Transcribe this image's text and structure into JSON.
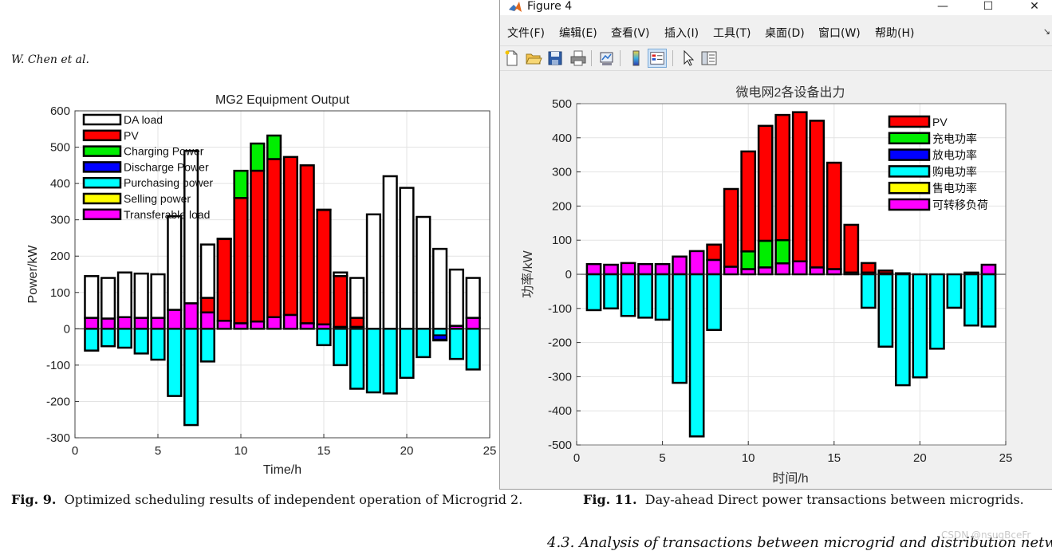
{
  "paper": {
    "authors": "W. Chen et al.",
    "fig9_label": "Fig. 9.",
    "fig9_caption": "Optimized scheduling results of independent operation of Microgrid 2.",
    "fig11_label": "Fig. 11.",
    "fig11_caption": "Day-ahead Direct power transactions between microgrids.",
    "section_heading": "4.3.  Analysis of transactions between microgrid and distribution network",
    "watermark": "CSDN @nsugBceFr"
  },
  "window": {
    "title": "Figure 4",
    "controls": {
      "minimize": "—",
      "maximize": "☐",
      "close": "✕"
    },
    "menu": [
      "文件(F)",
      "编辑(E)",
      "查看(V)",
      "插入(I)",
      "工具(T)",
      "桌面(D)",
      "窗口(W)",
      "帮助(H)"
    ],
    "menu_grip": "↘",
    "toolbar_icons": [
      "new-figure-icon",
      "open-file-icon",
      "save-icon",
      "print-icon",
      "link-plot-icon",
      "colorbar-icon",
      "legend-icon",
      "pointer-icon",
      "property-inspector-icon"
    ]
  },
  "colors": {
    "DA load": "#ffffff",
    "PV": "#ff0000",
    "Charging": "#00ee00",
    "Discharge": "#0000ff",
    "Purchasing": "#00ffff",
    "Selling": "#ffff00",
    "Transferable": "#ff00ff"
  },
  "chart_data": [
    {
      "type": "bar",
      "title": "MG2 Equipment Output",
      "xlabel": "Time/h",
      "ylabel": "Power/kW",
      "xlim": [
        0,
        25
      ],
      "ylim": [
        -300,
        600
      ],
      "xticks": [
        0,
        5,
        10,
        15,
        20,
        25
      ],
      "yticks": [
        -300,
        -200,
        -100,
        0,
        100,
        200,
        300,
        400,
        500,
        600
      ],
      "grid": true,
      "legend_position": "top-left",
      "legend": [
        "DA load",
        "PV",
        "Charging Power",
        "Discharge Power",
        "Purchasing power",
        "Selling power",
        "Transferable load"
      ],
      "series_order": [
        "Transferable",
        "PV",
        "Charging",
        "DA load"
      ],
      "x": [
        1,
        2,
        3,
        4,
        5,
        6,
        7,
        8,
        9,
        10,
        11,
        12,
        13,
        14,
        15,
        16,
        17,
        18,
        19,
        20,
        21,
        22,
        23,
        24
      ],
      "series": [
        {
          "name": "Transferable",
          "values": [
            30,
            28,
            32,
            30,
            30,
            52,
            70,
            45,
            22,
            15,
            20,
            32,
            38,
            15,
            12,
            5,
            5,
            0,
            0,
            0,
            0,
            0,
            8,
            30
          ]
        },
        {
          "name": "PV",
          "values": [
            0,
            0,
            0,
            0,
            0,
            0,
            0,
            40,
            225,
            345,
            415,
            435,
            435,
            435,
            315,
            140,
            25,
            0,
            0,
            0,
            0,
            0,
            0,
            0
          ]
        },
        {
          "name": "Charging",
          "values": [
            0,
            0,
            0,
            0,
            0,
            0,
            0,
            0,
            0,
            75,
            75,
            65,
            0,
            0,
            0,
            0,
            0,
            0,
            0,
            0,
            0,
            0,
            0,
            0
          ]
        },
        {
          "name": "DA load",
          "values": [
            145,
            140,
            155,
            152,
            150,
            310,
            490,
            232,
            248,
            358,
            433,
            467,
            472,
            450,
            328,
            155,
            140,
            315,
            420,
            388,
            308,
            220,
            163,
            140
          ]
        },
        {
          "name": "Purchasing",
          "values": [
            -60,
            -48,
            -52,
            -68,
            -85,
            -185,
            -265,
            -90,
            0,
            0,
            0,
            0,
            0,
            0,
            -45,
            -100,
            -165,
            -175,
            -178,
            -135,
            -78,
            -32,
            -83,
            -112
          ]
        },
        {
          "name": "Discharge",
          "values": [
            0,
            0,
            0,
            0,
            0,
            0,
            0,
            0,
            0,
            0,
            0,
            0,
            0,
            0,
            0,
            0,
            0,
            0,
            0,
            0,
            0,
            -12,
            0,
            0
          ]
        }
      ]
    },
    {
      "type": "bar",
      "title": "微电网2各设备出力",
      "xlabel": "时间/h",
      "ylabel": "功率/kW",
      "xlim": [
        0,
        25
      ],
      "ylim": [
        -500,
        500
      ],
      "xticks": [
        0,
        5,
        10,
        15,
        20,
        25
      ],
      "yticks": [
        -500,
        -400,
        -300,
        -200,
        -100,
        0,
        100,
        200,
        300,
        400,
        500
      ],
      "grid": true,
      "legend_position": "top-right",
      "legend": [
        "PV",
        "充电功率",
        "放电功率",
        "购电功率",
        "售电功率",
        "可转移负荷"
      ],
      "series_order": [
        "Transferable",
        "Charging",
        "PV"
      ],
      "x": [
        1,
        2,
        3,
        4,
        5,
        6,
        7,
        8,
        9,
        10,
        11,
        12,
        13,
        14,
        15,
        16,
        17,
        18,
        19,
        20,
        21,
        22,
        23,
        24
      ],
      "series": [
        {
          "name": "Transferable",
          "values": [
            30,
            28,
            33,
            30,
            30,
            52,
            68,
            42,
            22,
            15,
            20,
            32,
            38,
            20,
            15,
            5,
            5,
            3,
            0,
            0,
            0,
            0,
            0,
            28
          ]
        },
        {
          "name": "Charging",
          "values": [
            0,
            0,
            0,
            0,
            0,
            0,
            0,
            0,
            0,
            52,
            78,
            68,
            0,
            0,
            0,
            0,
            0,
            0,
            0,
            0,
            0,
            0,
            0,
            0
          ]
        },
        {
          "name": "PV",
          "values": [
            0,
            0,
            0,
            0,
            0,
            0,
            0,
            45,
            228,
            293,
            337,
            367,
            437,
            430,
            312,
            140,
            28,
            8,
            3,
            0,
            0,
            0,
            5,
            0
          ]
        },
        {
          "name": "Purchasing",
          "values": [
            -105,
            -100,
            -122,
            -127,
            -133,
            -318,
            -475,
            -163,
            0,
            0,
            0,
            0,
            0,
            0,
            0,
            0,
            -98,
            -212,
            -325,
            -302,
            -218,
            -98,
            -150,
            -153
          ]
        }
      ]
    }
  ]
}
